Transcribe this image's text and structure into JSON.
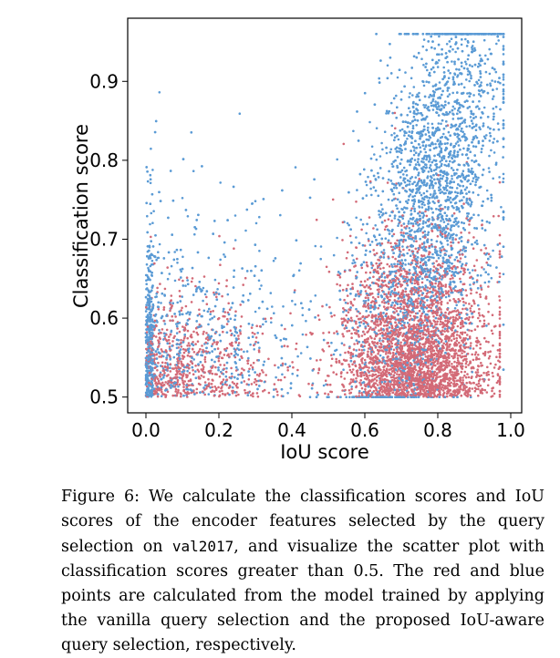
{
  "chart_data": {
    "type": "scatter",
    "xlabel": "IoU score",
    "ylabel": "Classification score",
    "xlim": [
      -0.05,
      1.03
    ],
    "ylim": [
      0.48,
      0.98
    ],
    "xticks": [
      0.0,
      0.2,
      0.4,
      0.6,
      0.8,
      1.0
    ],
    "xtick_labels": [
      "0.0",
      "0.2",
      "0.4",
      "0.6",
      "0.8",
      "1.0"
    ],
    "yticks": [
      0.5,
      0.6,
      0.7,
      0.8,
      0.9
    ],
    "ytick_labels": [
      "0.5",
      "0.6",
      "0.7",
      "0.8",
      "0.9"
    ],
    "grid": false,
    "legend": "none",
    "series": [
      {
        "color": "#d36a77",
        "description_points": [
          [
            0.7,
            0.55
          ],
          [
            0.75,
            0.6
          ],
          [
            0.8,
            0.52
          ],
          [
            0.65,
            0.58
          ],
          [
            0.72,
            0.65
          ],
          [
            0.85,
            0.55
          ],
          [
            0.6,
            0.51
          ],
          [
            0.78,
            0.7
          ],
          [
            0.02,
            0.55
          ],
          [
            0.05,
            0.51
          ]
        ]
      },
      {
        "color": "#5b9bd5",
        "description_points": [
          [
            0.75,
            0.9
          ],
          [
            0.8,
            0.85
          ],
          [
            0.9,
            0.95
          ],
          [
            0.7,
            0.8
          ],
          [
            0.85,
            0.75
          ],
          [
            0.65,
            0.72
          ],
          [
            0.3,
            0.6
          ],
          [
            0.1,
            0.7
          ],
          [
            0.0,
            0.65
          ],
          [
            0.5,
            0.55
          ],
          [
            0.95,
            0.92
          ]
        ]
      }
    ]
  },
  "caption": {
    "part1": "Figure 6:  We calculate the classification scores and IoU scores of the encoder features selected by the query selection on ",
    "code": "val2017",
    "part2": ", and visualize the scatter plot with classification scores greater than 0.5. The red and blue points are calculated from the model trained by applying the vanilla query selection and the proposed IoU-aware query selection, respectively."
  }
}
